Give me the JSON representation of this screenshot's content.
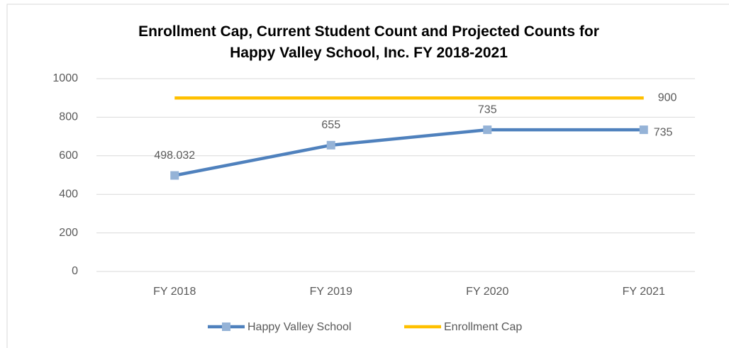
{
  "chart_data": {
    "type": "line",
    "title": "Enrollment Cap, Current Student Count and Projected Counts for Happy Valley School, Inc. FY 2018-2021",
    "categories": [
      "FY 2018",
      "FY 2019",
      "FY 2020",
      "FY 2021"
    ],
    "series": [
      {
        "name": "Happy Valley School",
        "color": "#4f81bd",
        "marker_color": "#95b3d7",
        "values": [
          498.032,
          655,
          735,
          735
        ]
      },
      {
        "name": "Enrollment Cap",
        "color": "#ffc000",
        "values": [
          900,
          900,
          900,
          900
        ]
      }
    ],
    "ylim": [
      0,
      1000
    ],
    "yticks": [
      0,
      200,
      400,
      600,
      800,
      1000
    ],
    "grid": true,
    "legend": "bottom"
  }
}
